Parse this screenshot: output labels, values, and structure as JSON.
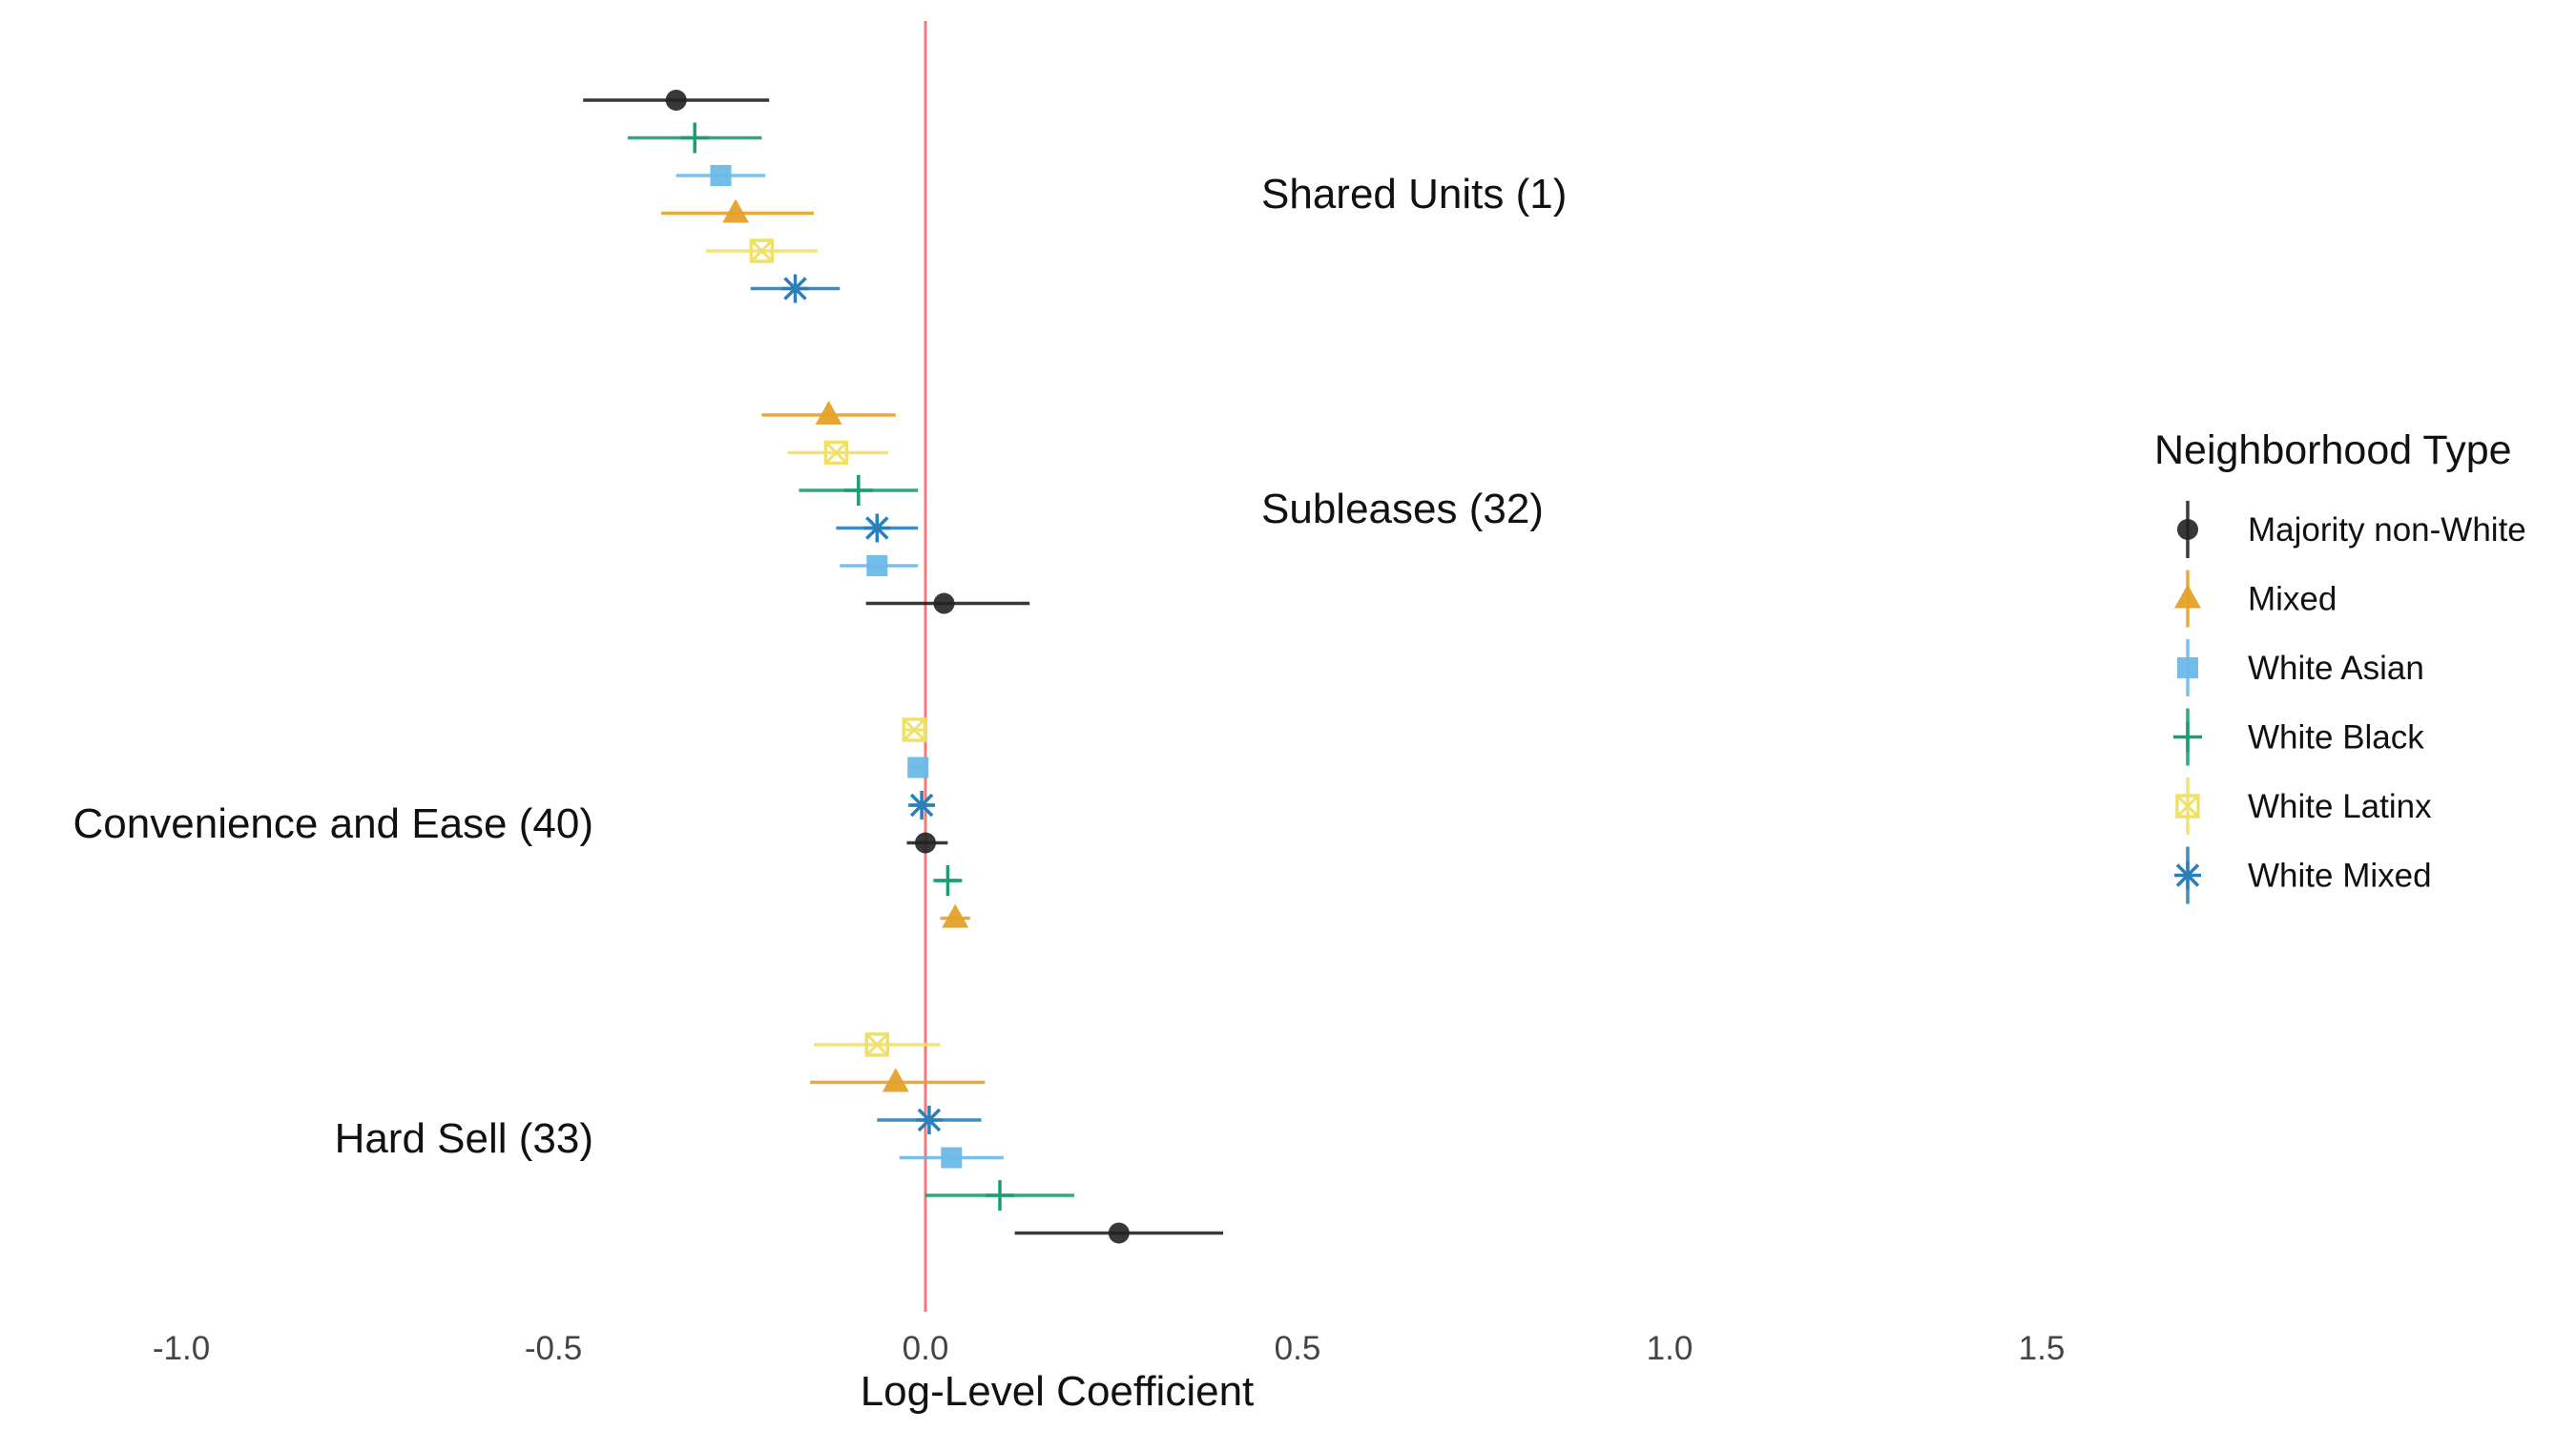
{
  "chart_data": {
    "type": "scatter",
    "subtype": "coefficient-plot-with-error-bars",
    "xlabel": "Log-Level Coefficient",
    "ylabel": "",
    "xlim": [
      -1.0,
      1.5
    ],
    "x_ticks": [
      -1.0,
      -0.5,
      0.0,
      0.5,
      1.0,
      1.5
    ],
    "x_tick_labels": [
      "-1.0",
      "-0.5",
      "0.0",
      "0.5",
      "1.0",
      "1.5"
    ],
    "grid": false,
    "reference_line": {
      "x": 0.0,
      "color": "#f07a78"
    },
    "legend": {
      "title": "Neighborhood Type",
      "placement": "right",
      "entries": [
        {
          "name": "Majority non-White",
          "color": "#222222",
          "marker": "circle"
        },
        {
          "name": "Mixed",
          "color": "#e5a12a",
          "marker": "triangle"
        },
        {
          "name": "White Asian",
          "color": "#6ab9e8",
          "marker": "square"
        },
        {
          "name": "White Black",
          "color": "#1a9e73",
          "marker": "plus"
        },
        {
          "name": "White Latinx",
          "color": "#efe06a",
          "marker": "square-cross"
        },
        {
          "name": "White Mixed",
          "color": "#2b80b9",
          "marker": "asterisk"
        }
      ]
    },
    "groups": [
      {
        "label": "Shared Units (1)",
        "label_side": "right",
        "points": [
          {
            "series": "Majority non-White",
            "estimate": -0.335,
            "lower": -0.46,
            "upper": -0.21
          },
          {
            "series": "White Black",
            "estimate": -0.31,
            "lower": -0.4,
            "upper": -0.22
          },
          {
            "series": "White Asian",
            "estimate": -0.275,
            "lower": -0.335,
            "upper": -0.215
          },
          {
            "series": "Mixed",
            "estimate": -0.255,
            "lower": -0.355,
            "upper": -0.15
          },
          {
            "series": "White Latinx",
            "estimate": -0.22,
            "lower": -0.295,
            "upper": -0.145
          },
          {
            "series": "White Mixed",
            "estimate": -0.175,
            "lower": -0.235,
            "upper": -0.115
          }
        ]
      },
      {
        "label": "Subleases (32)",
        "label_side": "right",
        "points": [
          {
            "series": "Mixed",
            "estimate": -0.13,
            "lower": -0.22,
            "upper": -0.04
          },
          {
            "series": "White Latinx",
            "estimate": -0.12,
            "lower": -0.185,
            "upper": -0.05
          },
          {
            "series": "White Black",
            "estimate": -0.09,
            "lower": -0.17,
            "upper": -0.01
          },
          {
            "series": "White Mixed",
            "estimate": -0.065,
            "lower": -0.12,
            "upper": -0.01
          },
          {
            "series": "White Asian",
            "estimate": -0.065,
            "lower": -0.115,
            "upper": -0.01
          },
          {
            "series": "Majority non-White",
            "estimate": 0.025,
            "lower": -0.08,
            "upper": 0.14
          }
        ]
      },
      {
        "label": "Convenience and Ease (40)",
        "label_side": "left",
        "points": [
          {
            "series": "White Latinx",
            "estimate": -0.015,
            "lower": -0.03,
            "upper": 0.0
          },
          {
            "series": "White Asian",
            "estimate": -0.01,
            "lower": -0.02,
            "upper": 0.0
          },
          {
            "series": "White Mixed",
            "estimate": -0.005,
            "lower": -0.02,
            "upper": 0.01
          },
          {
            "series": "Majority non-White",
            "estimate": 0.0,
            "lower": -0.025,
            "upper": 0.03
          },
          {
            "series": "White Black",
            "estimate": 0.03,
            "lower": 0.015,
            "upper": 0.045
          },
          {
            "series": "Mixed",
            "estimate": 0.04,
            "lower": 0.02,
            "upper": 0.06
          }
        ]
      },
      {
        "label": "Hard Sell (33)",
        "label_side": "left",
        "points": [
          {
            "series": "White Latinx",
            "estimate": -0.065,
            "lower": -0.15,
            "upper": 0.02
          },
          {
            "series": "Mixed",
            "estimate": -0.04,
            "lower": -0.155,
            "upper": 0.08
          },
          {
            "series": "White Mixed",
            "estimate": 0.005,
            "lower": -0.065,
            "upper": 0.075
          },
          {
            "series": "White Asian",
            "estimate": 0.035,
            "lower": -0.035,
            "upper": 0.105
          },
          {
            "series": "White Black",
            "estimate": 0.1,
            "lower": 0.0,
            "upper": 0.2
          },
          {
            "series": "Majority non-White",
            "estimate": 0.26,
            "lower": 0.12,
            "upper": 0.4
          }
        ]
      }
    ]
  }
}
